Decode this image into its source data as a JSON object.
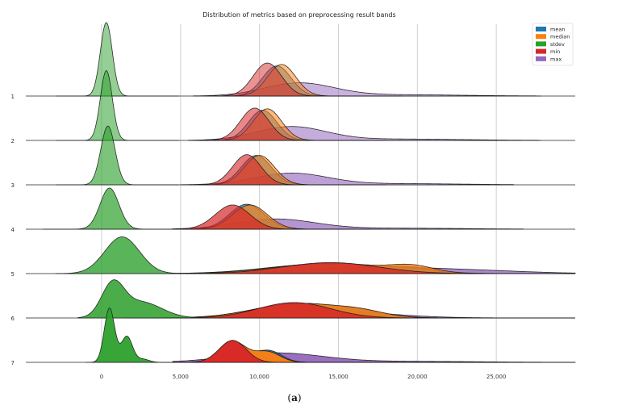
{
  "caption": {
    "prefix": "(",
    "letter": "a",
    "suffix": ")"
  },
  "chart_data": {
    "type": "ridgeline-density",
    "title": "Distribution of metrics based on preprocessing result bands",
    "xlabel": "",
    "ylabel": "",
    "xlim": [
      -4800,
      30000
    ],
    "x_ticks": [
      0,
      5000,
      10000,
      15000,
      20000,
      25000
    ],
    "x_tick_labels": [
      "0",
      "5,000",
      "10,000",
      "15,000",
      "20,000",
      "25,000"
    ],
    "grid": "vertical",
    "legend_position": "top-right",
    "series": [
      {
        "name": "mean",
        "color": "#1f77b4"
      },
      {
        "name": "median",
        "color": "#ff7f0e"
      },
      {
        "name": "stdev",
        "color": "#2ca02c"
      },
      {
        "name": "min",
        "color": "#d62728"
      },
      {
        "name": "max",
        "color": "#9467bd"
      }
    ],
    "bands": [
      {
        "label": "1",
        "opacity": 0.5,
        "stdev": {
          "components": [
            {
              "c": 300,
              "s": 380,
              "w": 1
            }
          ],
          "h": 1.0,
          "range": [
            -2900,
            4900
          ]
        },
        "mean": {
          "components": [
            {
              "c": 11100,
              "s": 900,
              "w": 1
            }
          ],
          "h": 0.41,
          "range": [
            7000,
            19000
          ]
        },
        "median": {
          "components": [
            {
              "c": 11400,
              "s": 900,
              "w": 1
            }
          ],
          "h": 0.43,
          "range": [
            7000,
            19000
          ]
        },
        "min": {
          "components": [
            {
              "c": 10500,
              "s": 900,
              "w": 1
            }
          ],
          "h": 0.45,
          "range": [
            6500,
            17000
          ]
        },
        "max": {
          "components": [
            {
              "c": 12500,
              "s": 2200,
              "w": 1
            },
            {
              "c": 19000,
              "s": 4000,
              "w": 0.1
            }
          ],
          "h": 0.18,
          "range": [
            5800,
            27800
          ]
        }
      },
      {
        "label": "2",
        "opacity": 0.55,
        "stdev": {
          "components": [
            {
              "c": 300,
              "s": 380,
              "w": 1
            }
          ],
          "h": 0.95,
          "range": [
            -2900,
            4900
          ]
        },
        "mean": {
          "components": [
            {
              "c": 10200,
              "s": 900,
              "w": 1
            }
          ],
          "h": 0.41,
          "range": [
            6500,
            18000
          ]
        },
        "median": {
          "components": [
            {
              "c": 10500,
              "s": 900,
              "w": 1
            }
          ],
          "h": 0.43,
          "range": [
            6500,
            18000
          ]
        },
        "min": {
          "components": [
            {
              "c": 9700,
              "s": 900,
              "w": 1
            }
          ],
          "h": 0.44,
          "range": [
            6000,
            16500
          ]
        },
        "max": {
          "components": [
            {
              "c": 12000,
              "s": 2200,
              "w": 1
            },
            {
              "c": 19000,
              "s": 4000,
              "w": 0.1
            }
          ],
          "h": 0.19,
          "range": [
            5500,
            27800
          ]
        }
      },
      {
        "label": "3",
        "opacity": 0.62,
        "stdev": {
          "components": [
            {
              "c": 400,
              "s": 450,
              "w": 1
            }
          ],
          "h": 0.8,
          "range": [
            -2900,
            4900
          ]
        },
        "mean": {
          "components": [
            {
              "c": 9800,
              "s": 950,
              "w": 1
            }
          ],
          "h": 0.4,
          "range": [
            6000,
            18000
          ]
        },
        "median": {
          "components": [
            {
              "c": 10000,
              "s": 950,
              "w": 1
            }
          ],
          "h": 0.4,
          "range": [
            6000,
            18000
          ]
        },
        "min": {
          "components": [
            {
              "c": 9200,
              "s": 900,
              "w": 1
            }
          ],
          "h": 0.41,
          "range": [
            5500,
            16000
          ]
        },
        "max": {
          "components": [
            {
              "c": 12000,
              "s": 2300,
              "w": 1
            },
            {
              "c": 19000,
              "s": 4000,
              "w": 0.1
            }
          ],
          "h": 0.16,
          "range": [
            5000,
            26100
          ]
        }
      },
      {
        "label": "4",
        "opacity": 0.7,
        "stdev": {
          "components": [
            {
              "c": 500,
              "s": 600,
              "w": 1
            }
          ],
          "h": 0.56,
          "range": [
            -3700,
            5000
          ]
        },
        "mean": {
          "components": [
            {
              "c": 9200,
              "s": 1100,
              "w": 1
            }
          ],
          "h": 0.34,
          "range": [
            5000,
            17000
          ]
        },
        "median": {
          "components": [
            {
              "c": 9400,
              "s": 1100,
              "w": 1
            }
          ],
          "h": 0.33,
          "range": [
            5000,
            17000
          ]
        },
        "min": {
          "components": [
            {
              "c": 8300,
              "s": 1100,
              "w": 1
            }
          ],
          "h": 0.33,
          "range": [
            4500,
            16000
          ]
        },
        "max": {
          "components": [
            {
              "c": 11000,
              "s": 2500,
              "w": 1
            },
            {
              "c": 19000,
              "s": 4000,
              "w": 0.1
            }
          ],
          "h": 0.14,
          "range": [
            4500,
            26700
          ]
        }
      },
      {
        "label": "5",
        "opacity": 0.78,
        "stdev": {
          "components": [
            {
              "c": 1300,
              "s": 1100,
              "w": 1
            }
          ],
          "h": 0.5,
          "range": [
            -2900,
            6000
          ]
        },
        "mean": {
          "components": [
            {
              "c": 14000,
              "s": 3500,
              "w": 1
            },
            {
              "c": 19500,
              "s": 1300,
              "w": 0.45
            }
          ],
          "h": 0.13,
          "range": [
            4500,
            30000
          ]
        },
        "median": {
          "components": [
            {
              "c": 14500,
              "s": 3500,
              "w": 1
            },
            {
              "c": 19700,
              "s": 1300,
              "w": 0.55
            }
          ],
          "h": 0.14,
          "range": [
            4500,
            30000
          ]
        },
        "min": {
          "components": [
            {
              "c": 14500,
              "s": 3000,
              "w": 1
            }
          ],
          "h": 0.15,
          "range": [
            4000,
            30000
          ]
        },
        "max": {
          "components": [
            {
              "c": 17000,
              "s": 4200,
              "w": 1
            },
            {
              "c": 24000,
              "s": 3500,
              "w": 0.35
            }
          ],
          "h": 0.09,
          "range": [
            4000,
            30000
          ]
        }
      },
      {
        "label": "6",
        "opacity": 0.86,
        "stdev": {
          "components": [
            {
              "c": 700,
              "s": 700,
              "w": 1
            },
            {
              "c": 2500,
              "s": 1300,
              "w": 0.5
            }
          ],
          "h": 0.52,
          "range": [
            -1500,
            6500
          ]
        },
        "mean": {
          "components": [
            {
              "c": 12500,
              "s": 2800,
              "w": 1
            },
            {
              "c": 16500,
              "s": 1500,
              "w": 0.25
            }
          ],
          "h": 0.2,
          "range": [
            1500,
            30000
          ]
        },
        "median": {
          "components": [
            {
              "c": 12500,
              "s": 2800,
              "w": 1
            },
            {
              "c": 16500,
              "s": 1500,
              "w": 0.3
            }
          ],
          "h": 0.2,
          "range": [
            1500,
            30000
          ]
        },
        "min": {
          "components": [
            {
              "c": 12200,
              "s": 2300,
              "w": 1
            }
          ],
          "h": 0.21,
          "range": [
            1500,
            30000
          ]
        },
        "max": {
          "components": [
            {
              "c": 14000,
              "s": 3800,
              "w": 1
            }
          ],
          "h": 0.1,
          "range": [
            1500,
            30000
          ]
        }
      },
      {
        "label": "7",
        "opacity": 0.95,
        "stdev": {
          "components": [
            {
              "c": 500,
              "s": 330,
              "w": 1
            },
            {
              "c": 1600,
              "s": 350,
              "w": 0.48
            },
            {
              "c": 2600,
              "s": 400,
              "w": 0.06
            }
          ],
          "h": 0.74,
          "range": [
            -1000,
            5000
          ]
        },
        "mean": {
          "components": [
            {
              "c": 8300,
              "s": 850,
              "w": 1
            },
            {
              "c": 10600,
              "s": 800,
              "w": 0.55
            }
          ],
          "h": 0.29,
          "range": [
            4500,
            30000
          ]
        },
        "median": {
          "components": [
            {
              "c": 8300,
              "s": 850,
              "w": 1
            },
            {
              "c": 10500,
              "s": 800,
              "w": 0.5
            }
          ],
          "h": 0.29,
          "range": [
            4500,
            30000
          ]
        },
        "min": {
          "components": [
            {
              "c": 8300,
              "s": 850,
              "w": 1
            }
          ],
          "h": 0.3,
          "range": [
            4500,
            30000
          ]
        },
        "max": {
          "components": [
            {
              "c": 11000,
              "s": 3000,
              "w": 1
            },
            {
              "c": 20000,
              "s": 4000,
              "w": 0.1
            }
          ],
          "h": 0.13,
          "range": [
            4500,
            30000
          ]
        }
      }
    ]
  }
}
